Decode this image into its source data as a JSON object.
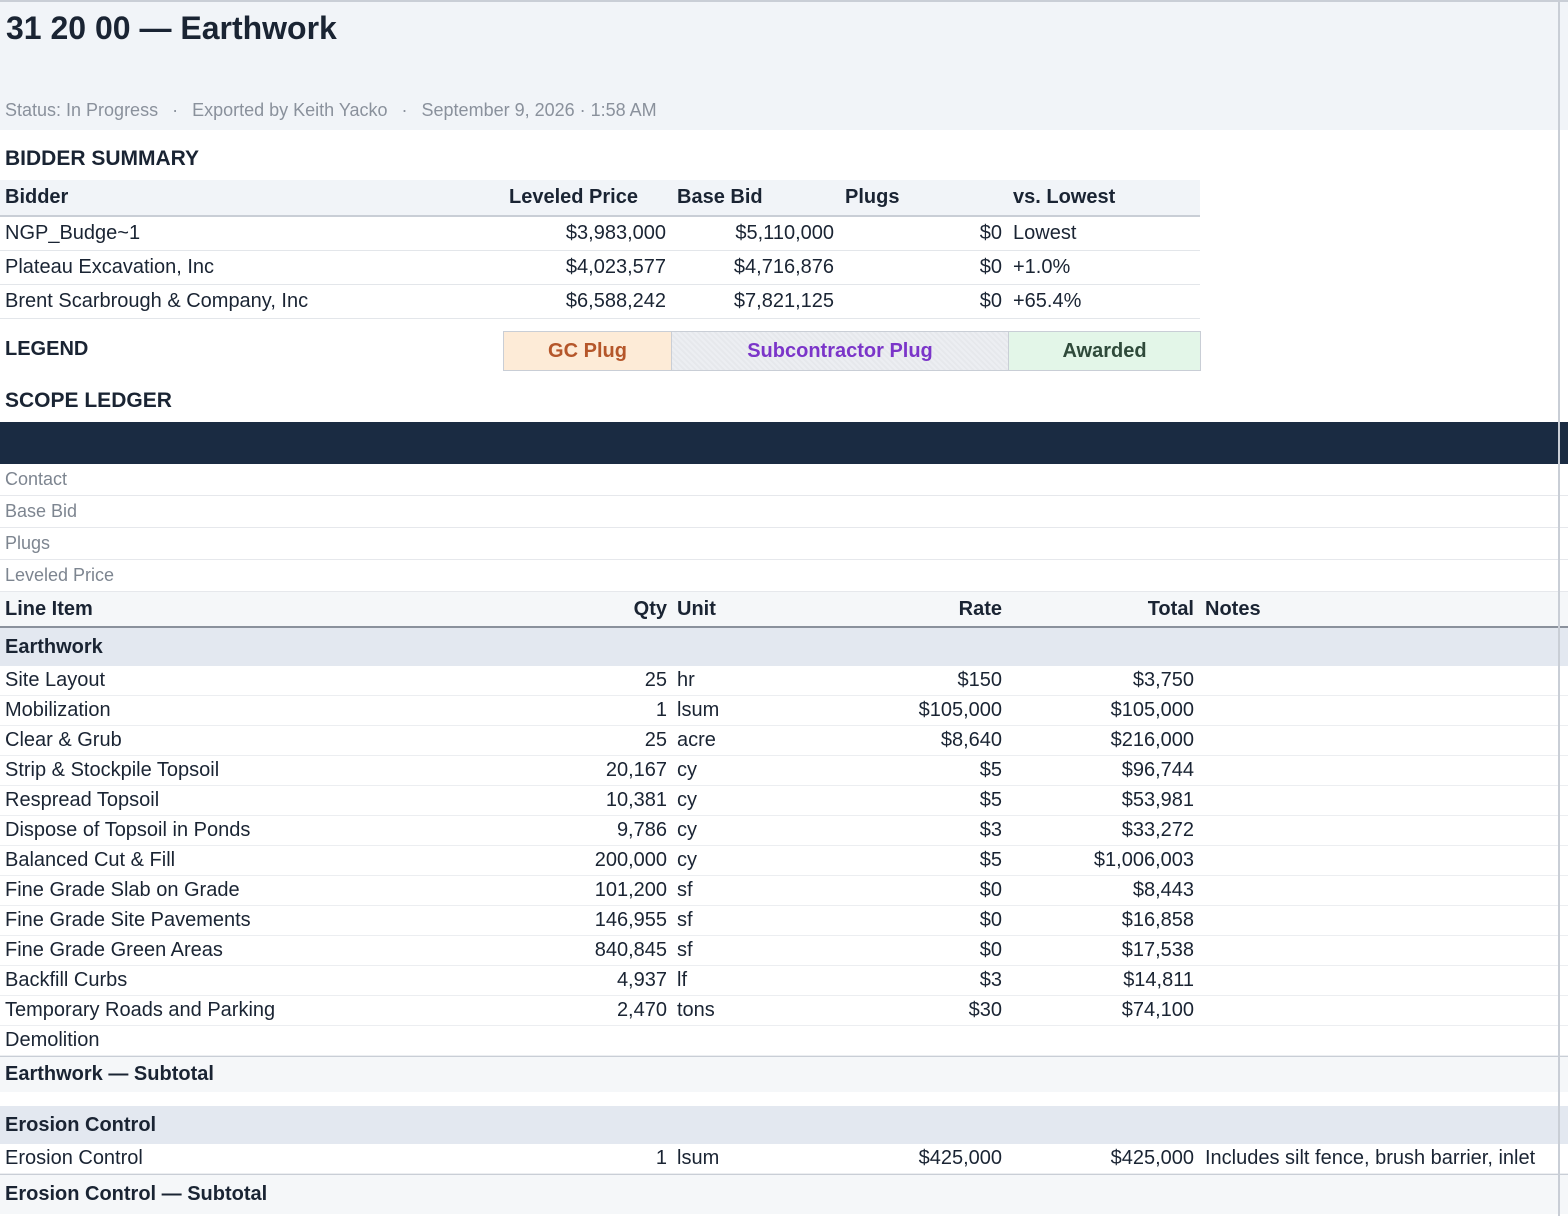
{
  "header": {
    "title": "31 20 00 — Earthwork",
    "status": "Status: In Progress",
    "exported_by": "Exported by Keith Yacko",
    "timestamp": "September 9, 2026 · 1:58 AM",
    "separator": "·"
  },
  "bidder_summary": {
    "title": "BIDDER SUMMARY",
    "columns": [
      "Bidder",
      "Leveled Price",
      "Base Bid",
      "Plugs",
      "vs. Lowest"
    ],
    "rows": [
      {
        "bidder": "NGP_Budge~1",
        "leveled_price": "$3,983,000",
        "base_bid": "$5,110,000",
        "plugs": "$0",
        "vs_lowest": "Lowest"
      },
      {
        "bidder": "Plateau Excavation, Inc",
        "leveled_price": "$4,023,577",
        "base_bid": "$4,716,876",
        "plugs": "$0",
        "vs_lowest": "+1.0%"
      },
      {
        "bidder": "Brent Scarbrough & Company, Inc",
        "leveled_price": "$6,588,242",
        "base_bid": "$7,821,125",
        "plugs": "$0",
        "vs_lowest": "+65.4%"
      }
    ]
  },
  "legend": {
    "title": "LEGEND",
    "items": [
      {
        "label": "GC Plug",
        "bg": "#fdebd7",
        "color": "#b5562a"
      },
      {
        "label": "Subcontractor Plug",
        "bg": "#eceef2",
        "color": "#7b35c9"
      },
      {
        "label": "Awarded",
        "bg": "#e3f6e8",
        "color": "#2f4a3a"
      }
    ]
  },
  "scope_ledger": {
    "title": "SCOPE LEDGER",
    "meta_rows": [
      "Contact",
      "Base Bid",
      "Plugs",
      "Leveled Price"
    ],
    "columns": [
      "Line Item",
      "Qty",
      "Unit",
      "Rate",
      "Total",
      "Notes"
    ],
    "groups": [
      {
        "name": "Earthwork",
        "items": [
          {
            "item": "Site Layout",
            "qty": "25",
            "unit": "hr",
            "rate": "$150",
            "total": "$3,750",
            "notes": ""
          },
          {
            "item": "Mobilization",
            "qty": "1",
            "unit": "lsum",
            "rate": "$105,000",
            "total": "$105,000",
            "notes": ""
          },
          {
            "item": "Clear & Grub",
            "qty": "25",
            "unit": "acre",
            "rate": "$8,640",
            "total": "$216,000",
            "notes": ""
          },
          {
            "item": "Strip & Stockpile Topsoil",
            "qty": "20,167",
            "unit": "cy",
            "rate": "$5",
            "total": "$96,744",
            "notes": ""
          },
          {
            "item": "Respread Topsoil",
            "qty": "10,381",
            "unit": "cy",
            "rate": "$5",
            "total": "$53,981",
            "notes": ""
          },
          {
            "item": "Dispose of Topsoil in Ponds",
            "qty": "9,786",
            "unit": "cy",
            "rate": "$3",
            "total": "$33,272",
            "notes": ""
          },
          {
            "item": "Balanced Cut & Fill",
            "qty": "200,000",
            "unit": "cy",
            "rate": "$5",
            "total": "$1,006,003",
            "notes": ""
          },
          {
            "item": "Fine Grade Slab on Grade",
            "qty": "101,200",
            "unit": "sf",
            "rate": "$0",
            "total": "$8,443",
            "notes": ""
          },
          {
            "item": "Fine Grade Site Pavements",
            "qty": "146,955",
            "unit": "sf",
            "rate": "$0",
            "total": "$16,858",
            "notes": ""
          },
          {
            "item": "Fine Grade Green Areas",
            "qty": "840,845",
            "unit": "sf",
            "rate": "$0",
            "total": "$17,538",
            "notes": ""
          },
          {
            "item": "Backfill Curbs",
            "qty": "4,937",
            "unit": "lf",
            "rate": "$3",
            "total": "$14,811",
            "notes": ""
          },
          {
            "item": "Temporary Roads and Parking",
            "qty": "2,470",
            "unit": "tons",
            "rate": "$30",
            "total": "$74,100",
            "notes": ""
          },
          {
            "item": "Demolition",
            "qty": "",
            "unit": "",
            "rate": "",
            "total": "",
            "notes": ""
          }
        ],
        "subtotal_label": "Earthwork — Subtotal"
      },
      {
        "name": "Erosion Control",
        "items": [
          {
            "item": "Erosion Control",
            "qty": "1",
            "unit": "lsum",
            "rate": "$425,000",
            "total": "$425,000",
            "notes": "Includes silt fence, brush barrier, inlet"
          }
        ],
        "subtotal_label": "Erosion Control — Subtotal"
      }
    ]
  }
}
